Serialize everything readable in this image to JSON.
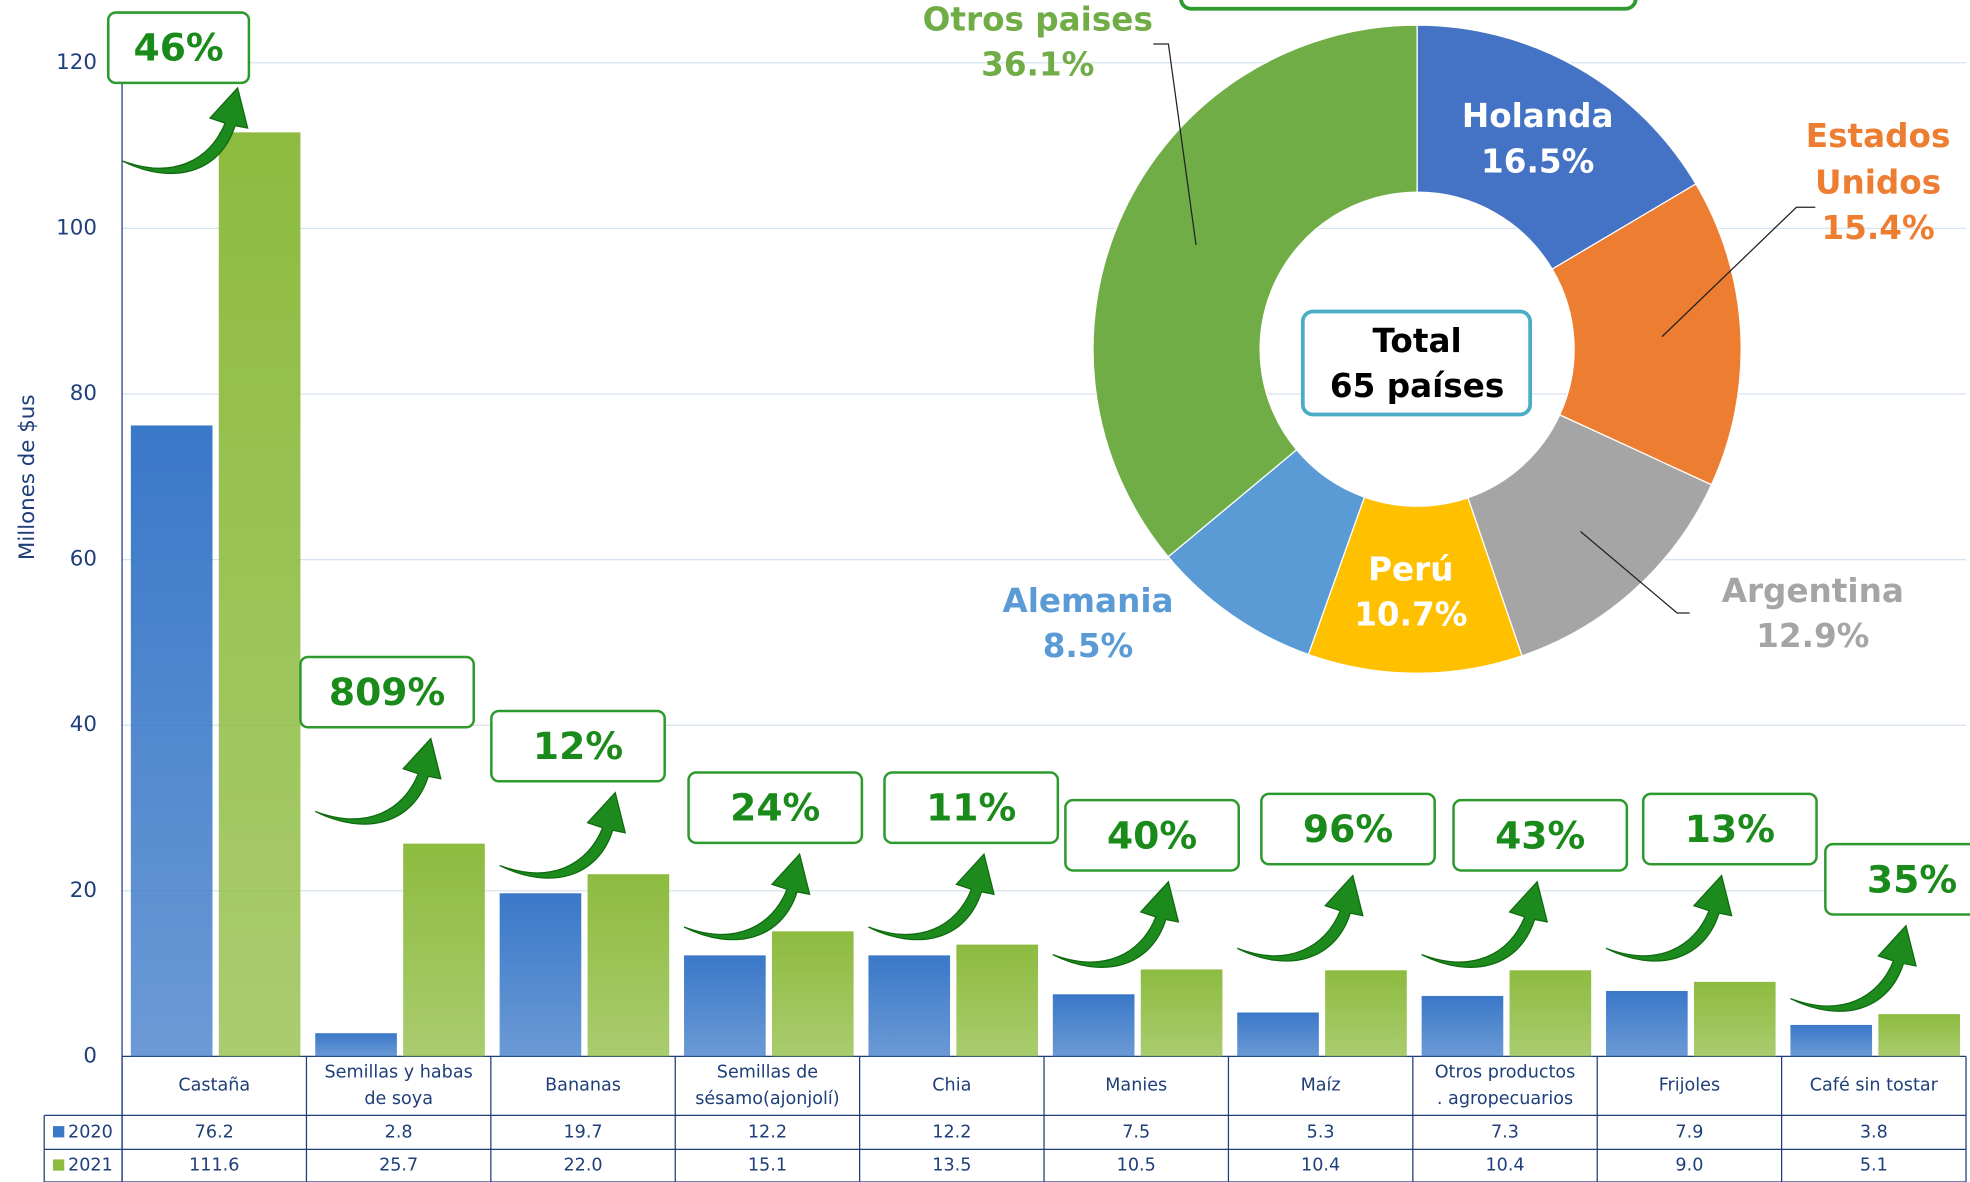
{
  "chart_data": [
    {
      "type": "bar",
      "y_label": "Millones de $us",
      "categories": [
        "Castaña",
        "Semillas y habas de soya",
        "Bananas",
        "Semillas de sésamo(ajonjolí)",
        "Chia",
        "Manies",
        "Maíz",
        "Otros productos . agropecuarios",
        "Frijoles",
        "Café sin tostar"
      ],
      "series": [
        {
          "name": "2020",
          "color": "#3a78c8",
          "values": [
            76.2,
            2.8,
            19.7,
            12.2,
            12.2,
            7.5,
            5.3,
            7.3,
            7.9,
            3.8
          ],
          "value_labels": [
            "76.2",
            "2.8",
            "19.7",
            "12.2",
            "12.2",
            "7.5",
            "5.3",
            "7.3",
            "7.9",
            "3.8"
          ]
        },
        {
          "name": "2021",
          "color": "#8dbb3f",
          "values": [
            111.6,
            25.7,
            22.0,
            15.1,
            13.5,
            10.5,
            10.4,
            10.4,
            9.0,
            5.1
          ],
          "value_labels": [
            "111.6",
            "25.7",
            "22.0",
            "15.1",
            "13.5",
            "10.5",
            "10.4",
            "10.4",
            "9.0",
            "5.1"
          ]
        }
      ],
      "growth_labels": [
        "46%",
        "809%",
        "12%",
        "24%",
        "11%",
        "40%",
        "96%",
        "43%",
        "13%",
        "35%"
      ],
      "ylim": [
        0,
        120
      ],
      "yticks": [
        0,
        20,
        40,
        60,
        80,
        100,
        120
      ],
      "grid": true
    },
    {
      "type": "pie",
      "center_label": [
        "Total",
        "65 países"
      ],
      "categories": [
        "Holanda",
        "Estados Unidos",
        "Argentina",
        "Perú",
        "Alemania",
        "Otros paises"
      ],
      "values": [
        16.5,
        15.4,
        12.9,
        10.7,
        8.5,
        36.1
      ],
      "value_labels": [
        "16.5%",
        "15.4%",
        "12.9%",
        "10.7%",
        "8.5%",
        "36.1%"
      ],
      "colors": [
        "#4472c4",
        "#ed7d31",
        "#a5a5a5",
        "#ffc000",
        "#5b9bd5",
        "#70ad47"
      ]
    }
  ]
}
